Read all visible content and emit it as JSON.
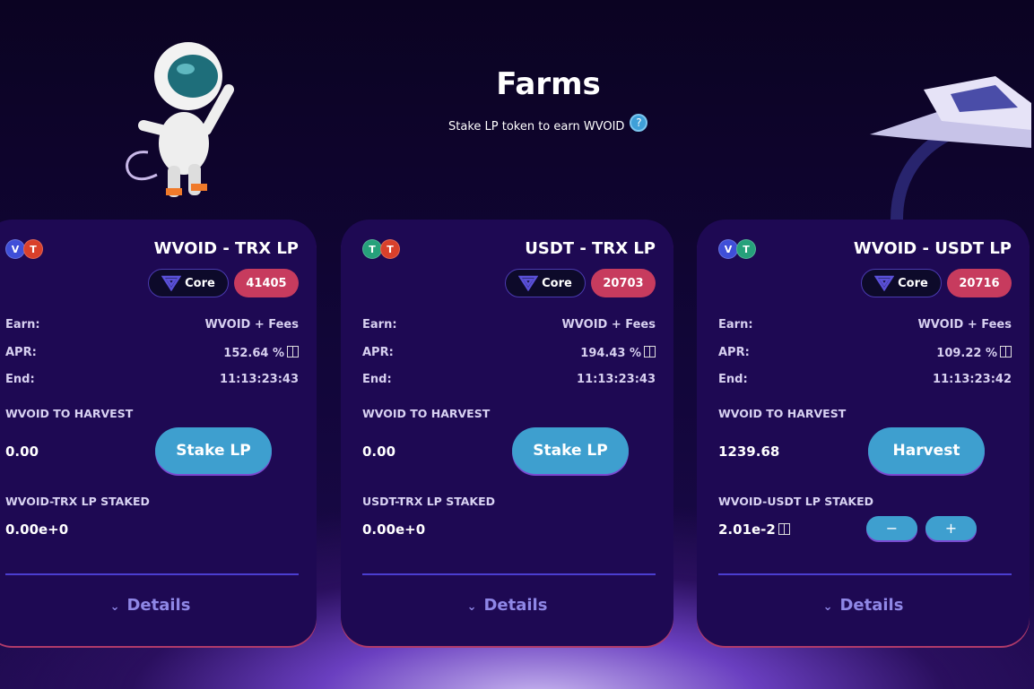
{
  "header": {
    "title": "Farms",
    "subtitle": "Stake LP token to earn WVOID",
    "help_icon": "?"
  },
  "labels": {
    "earn": "Earn:",
    "apr": "APR:",
    "end": "End:",
    "harvest_label": "WVOID TO HARVEST",
    "details": "Details",
    "core": "Core",
    "minus": "−",
    "plus": "+"
  },
  "colors": {
    "accent": "#3e9fcf",
    "multiplier": "#c73b5e",
    "card": "#1e0953"
  },
  "farms": [
    {
      "name": "WVOID - TRX LP",
      "tokens": [
        {
          "sym": "V",
          "color": "#3f4fd8"
        },
        {
          "sym": "T",
          "color": "#d9402b"
        }
      ],
      "multiplier": "41405",
      "earn": "WVOID + Fees",
      "apr": "152.64 %",
      "end": "11:13:23:43",
      "to_harvest": "0.00",
      "action": "Stake LP",
      "staked_label": "WVOID-TRX LP STAKED",
      "staked": "0.00e+0",
      "has_stepper": false
    },
    {
      "name": "USDT - TRX LP",
      "tokens": [
        {
          "sym": "T",
          "color": "#26a17b"
        },
        {
          "sym": "T",
          "color": "#d9402b"
        }
      ],
      "multiplier": "20703",
      "earn": "WVOID + Fees",
      "apr": "194.43 %",
      "end": "11:13:23:43",
      "to_harvest": "0.00",
      "action": "Stake LP",
      "staked_label": "USDT-TRX LP STAKED",
      "staked": "0.00e+0",
      "has_stepper": false
    },
    {
      "name": "WVOID - USDT LP",
      "tokens": [
        {
          "sym": "V",
          "color": "#3f4fd8"
        },
        {
          "sym": "T",
          "color": "#26a17b"
        }
      ],
      "multiplier": "20716",
      "earn": "WVOID + Fees",
      "apr": "109.22 %",
      "end": "11:13:23:42",
      "to_harvest": "1239.68",
      "action": "Harvest",
      "staked_label": "WVOID-USDT LP STAKED",
      "staked": "2.01e-2",
      "has_stepper": true
    }
  ]
}
